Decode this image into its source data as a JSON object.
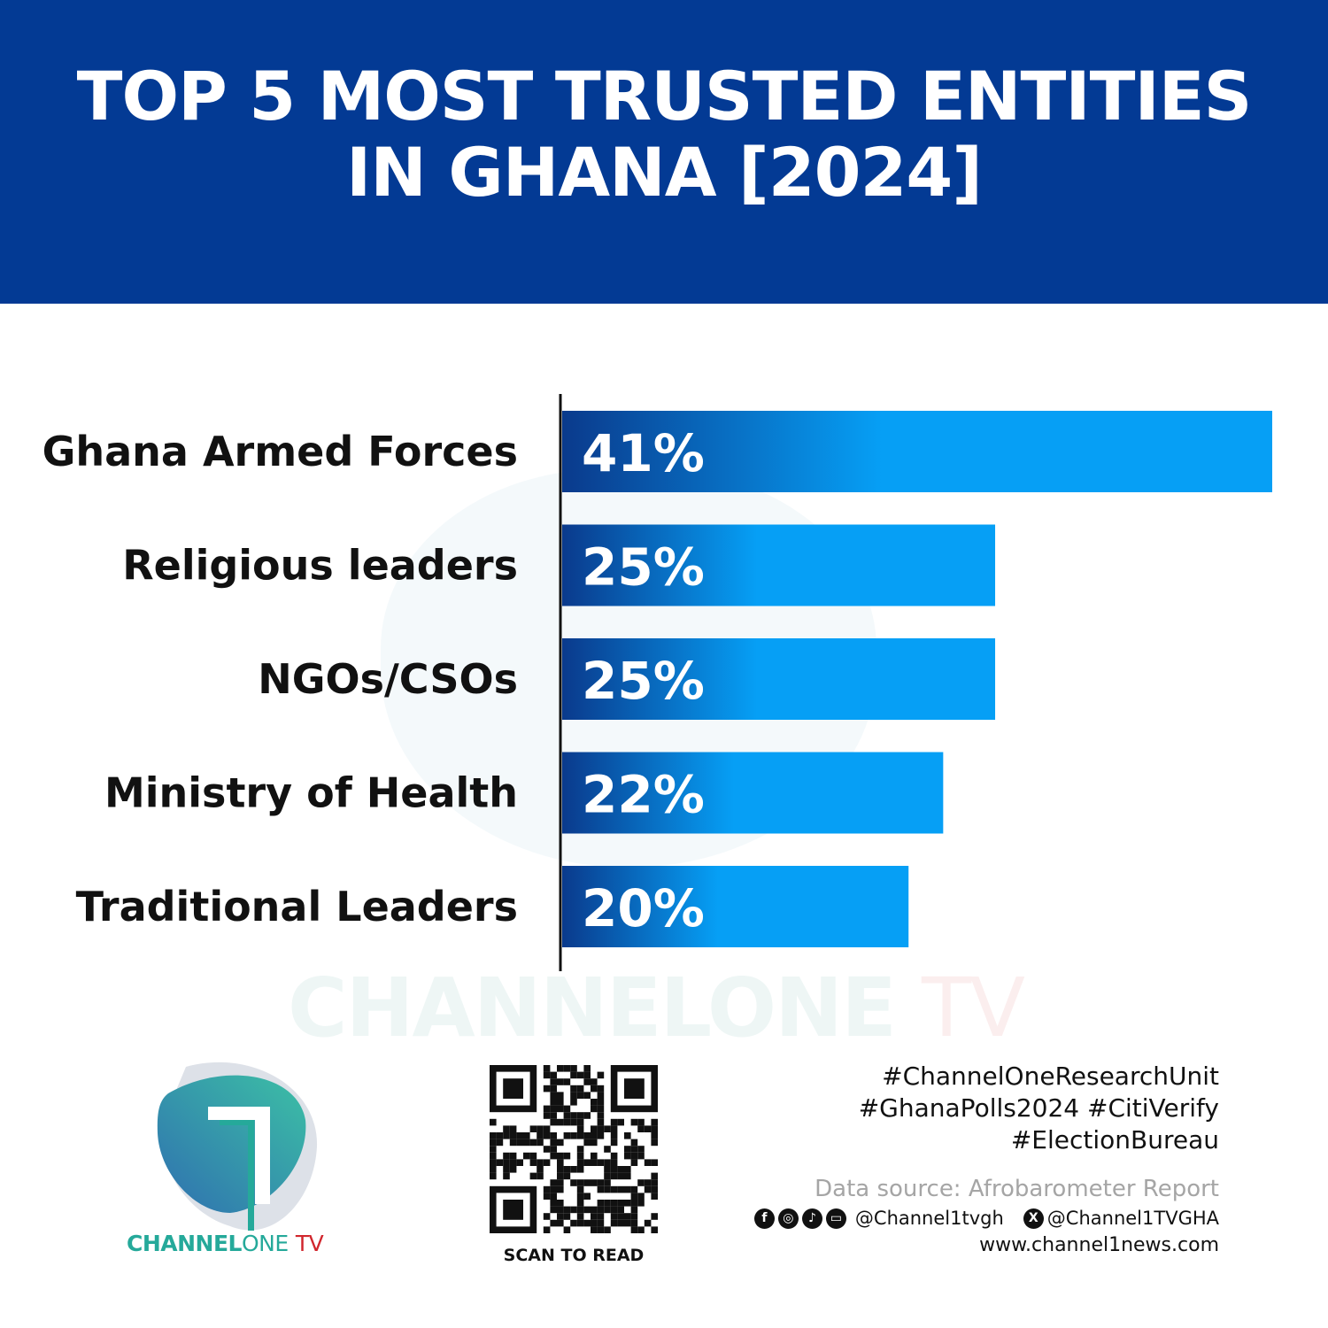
{
  "header": {
    "title_line1": "TOP 5 MOST TRUSTED ENTITIES",
    "title_line2": "IN GHANA [2024]",
    "background": "#033a94"
  },
  "chart_data": {
    "type": "bar",
    "orientation": "horizontal",
    "categories": [
      "Ghana Armed Forces",
      "Religious leaders",
      "NGOs/CSOs",
      "Ministry of Health",
      "Traditional Leaders"
    ],
    "values": [
      41,
      25,
      25,
      22,
      20
    ],
    "data_labels": [
      "41%",
      "25%",
      "25%",
      "22%",
      "20%"
    ],
    "xlim": [
      0,
      41
    ],
    "grid": false,
    "bar_gradient": [
      "#0a3a8c",
      "#069ff5"
    ]
  },
  "watermark": {
    "text_main": "CHANNELONE",
    "text_tv": "TV"
  },
  "logo": {
    "brand_main": "CHANNEL",
    "brand_one": "ONE",
    "brand_tv": "TV"
  },
  "qr": {
    "caption": "SCAN TO READ"
  },
  "footer": {
    "hashtags": [
      "#ChannelOneResearchUnit",
      "#GhanaPolls2024 #CitiVerify",
      "#ElectionBureau"
    ],
    "source": "Data source: Afrobarometer Report",
    "social_icons": [
      "facebook-icon",
      "instagram-icon",
      "tiktok-icon",
      "youtube-icon"
    ],
    "handle_main": "@Channel1tvgh",
    "handle_x": "@Channel1TVGHA",
    "website": "www.channel1news.com"
  }
}
